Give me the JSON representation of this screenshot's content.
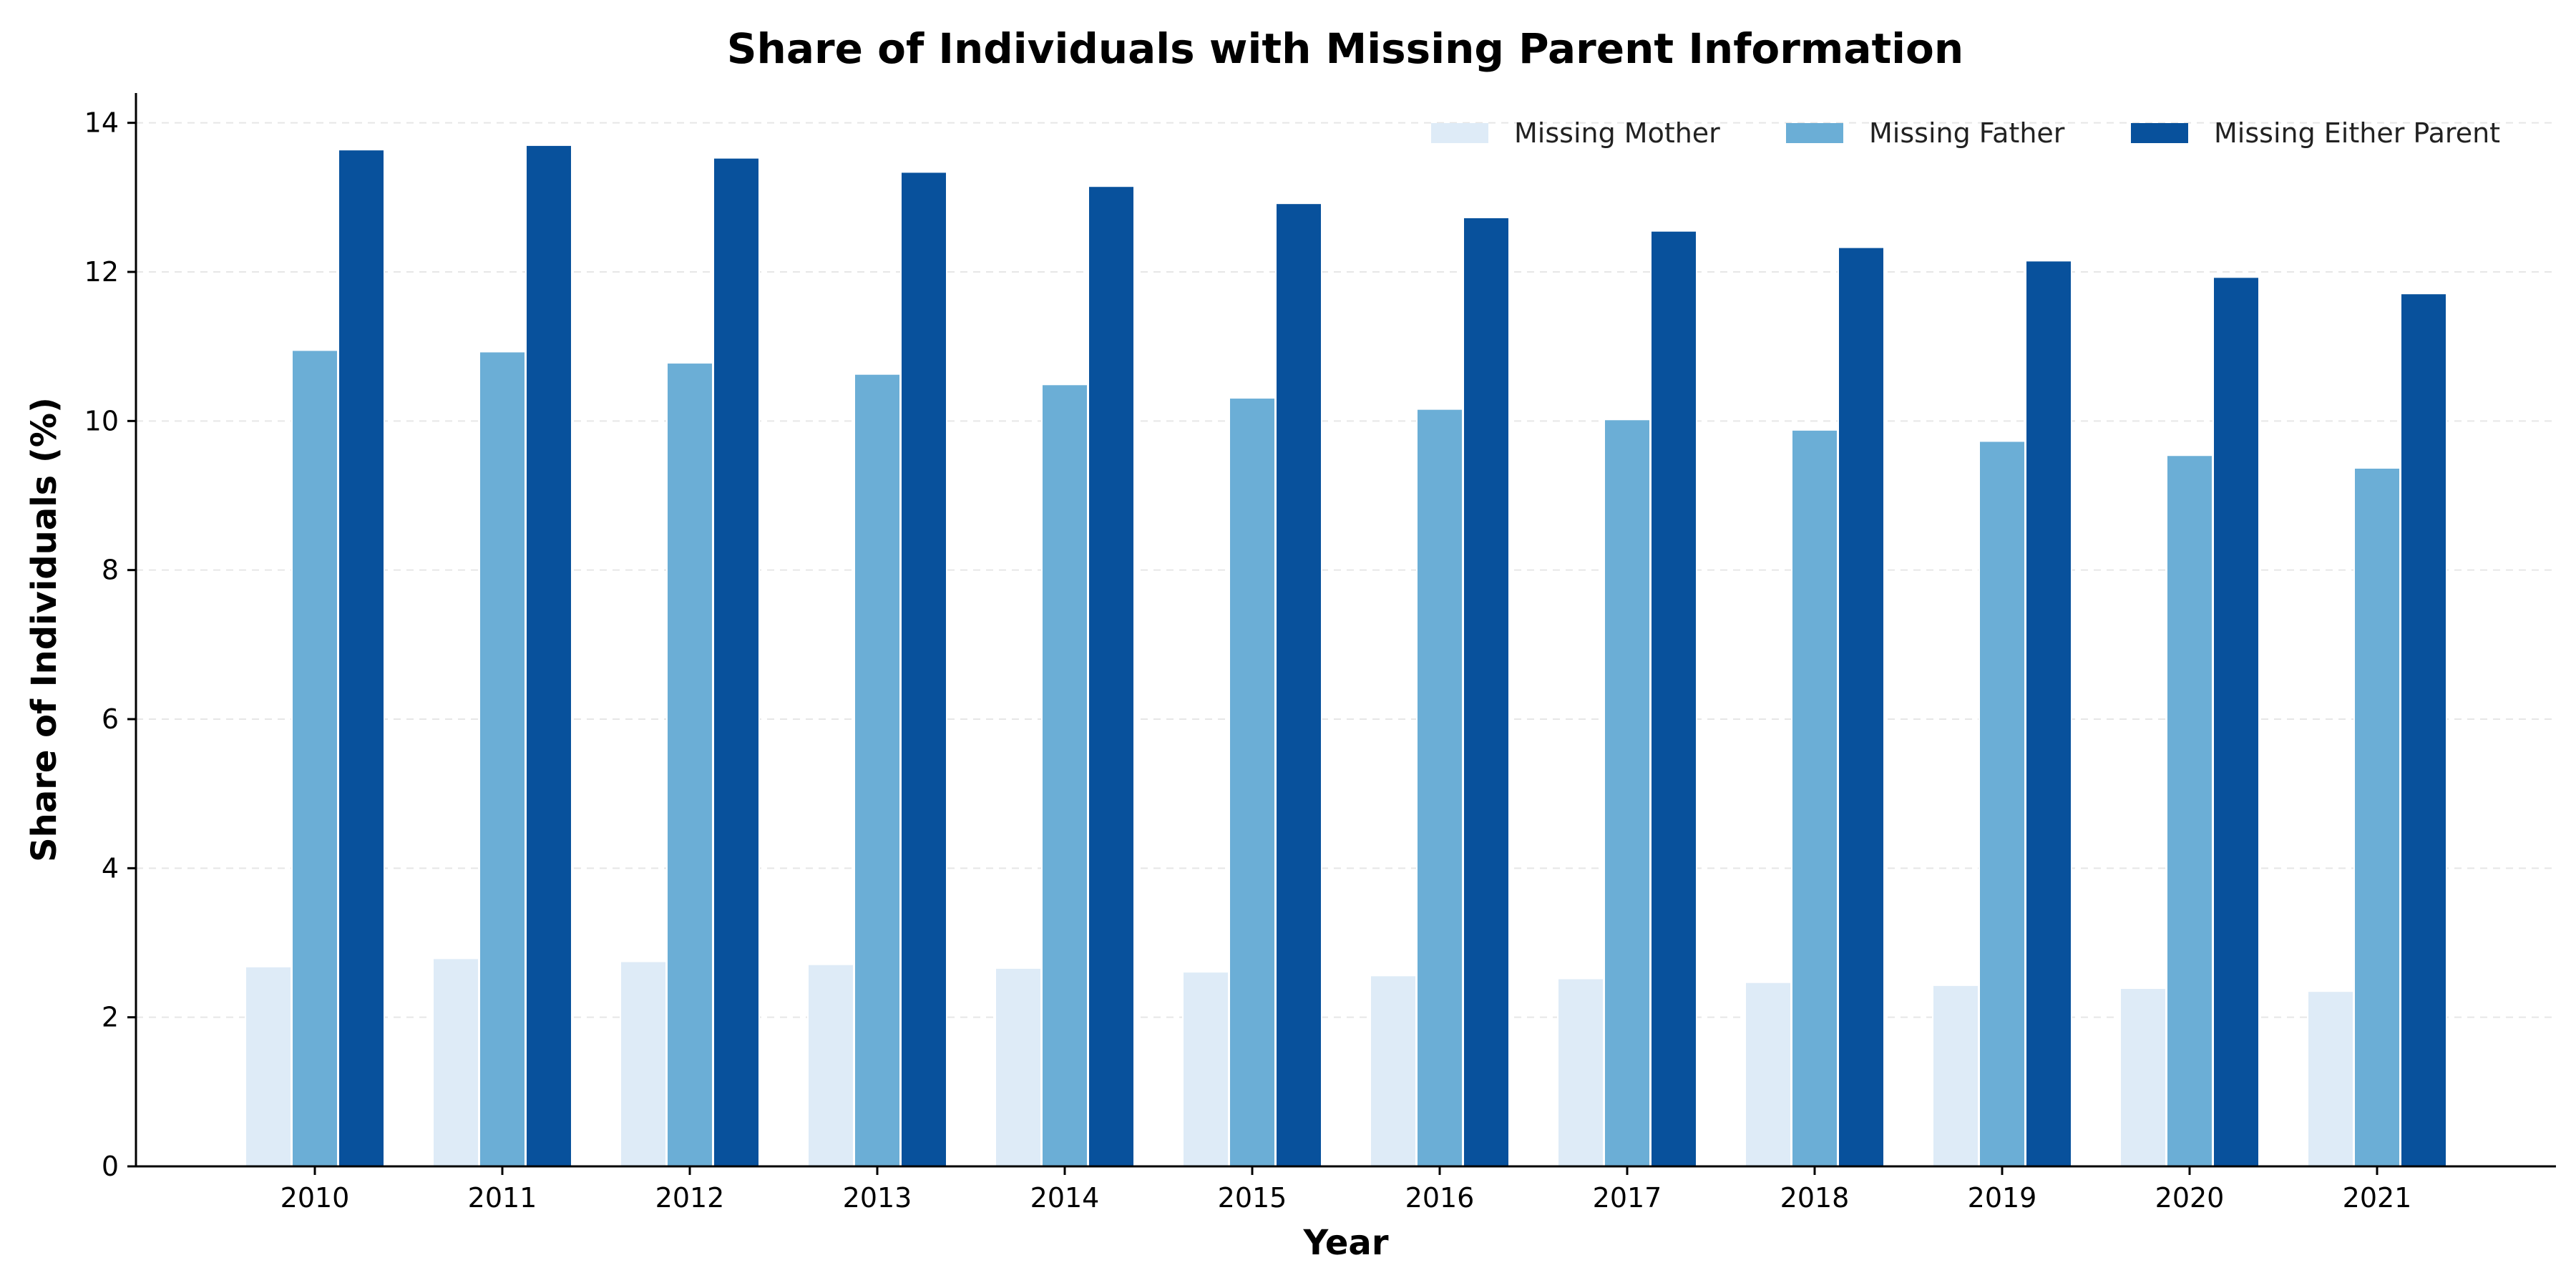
{
  "chart_data": {
    "type": "bar",
    "title": "Share of Individuals with Missing Parent Information",
    "xlabel": "Year",
    "ylabel": "Share of Individuals (%)",
    "categories": [
      "2010",
      "2011",
      "2012",
      "2013",
      "2014",
      "2015",
      "2016",
      "2017",
      "2018",
      "2019",
      "2020",
      "2021"
    ],
    "ylim": [
      0,
      14.4
    ],
    "yticks": [
      0,
      2,
      4,
      6,
      8,
      10,
      12,
      14
    ],
    "grid": true,
    "legend_position": "top-right",
    "series": [
      {
        "name": "Missing Mother",
        "color": "#deebf7",
        "values": [
          2.68,
          2.79,
          2.75,
          2.71,
          2.66,
          2.61,
          2.56,
          2.52,
          2.47,
          2.43,
          2.39,
          2.35
        ]
      },
      {
        "name": "Missing Father",
        "color": "#6baed6",
        "values": [
          10.95,
          10.93,
          10.78,
          10.63,
          10.49,
          10.31,
          10.16,
          10.02,
          9.88,
          9.73,
          9.54,
          9.37
        ]
      },
      {
        "name": "Missing Either Parent",
        "color": "#08519c",
        "values": [
          13.64,
          13.7,
          13.53,
          13.34,
          13.15,
          12.92,
          12.73,
          12.55,
          12.33,
          12.15,
          11.93,
          11.71
        ]
      }
    ]
  }
}
